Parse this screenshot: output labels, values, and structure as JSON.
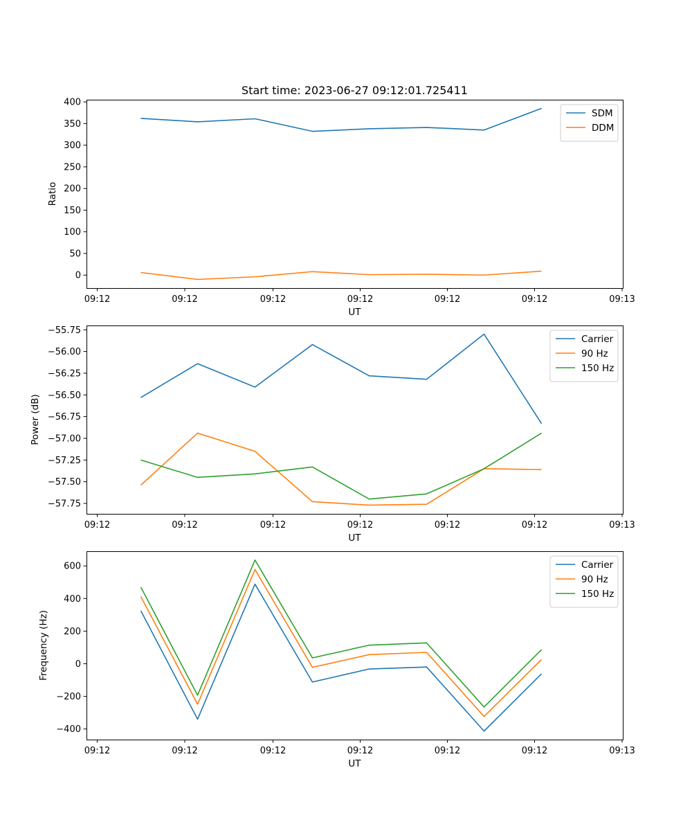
{
  "figure_title": "Start time: 2023-06-27 09:12:01.725411",
  "chart_data": [
    {
      "type": "line",
      "xlabel": "UT",
      "ylabel": "Ratio",
      "x_tick_labels": [
        "09:12",
        "09:12",
        "09:12",
        "09:12",
        "09:12",
        "09:12",
        "09:13"
      ],
      "ylim": [
        -30,
        405
      ],
      "y_ticks": [
        0,
        50,
        100,
        150,
        200,
        250,
        300,
        350,
        400
      ],
      "y_tick_labels": [
        "0",
        "50",
        "100",
        "150",
        "200",
        "250",
        "300",
        "350",
        "400"
      ],
      "legend_position": "top-right",
      "series": [
        {
          "name": "SDM",
          "color": "#1f77b4",
          "values": [
            362,
            354,
            361,
            332,
            338,
            341,
            335,
            385
          ]
        },
        {
          "name": "DDM",
          "color": "#ff7f0e",
          "values": [
            6,
            -10,
            -4,
            8,
            1,
            2,
            0,
            9
          ]
        }
      ]
    },
    {
      "type": "line",
      "xlabel": "UT",
      "ylabel": "Power (dB)",
      "x_tick_labels": [
        "09:12",
        "09:12",
        "09:12",
        "09:12",
        "09:12",
        "09:12",
        "09:13"
      ],
      "ylim": [
        -57.87,
        -55.7
      ],
      "y_ticks": [
        -57.75,
        -57.5,
        -57.25,
        -57.0,
        -56.75,
        -56.5,
        -56.25,
        -56.0,
        -55.75
      ],
      "y_tick_labels": [
        "−57.75",
        "−57.50",
        "−57.25",
        "−57.00",
        "−56.75",
        "−56.50",
        "−56.25",
        "−56.00",
        "−55.75"
      ],
      "legend_position": "top-right",
      "series": [
        {
          "name": "Carrier",
          "color": "#1f77b4",
          "values": [
            -56.53,
            -56.14,
            -56.41,
            -55.92,
            -56.28,
            -56.32,
            -55.8,
            -56.83
          ]
        },
        {
          "name": "90 Hz",
          "color": "#ff7f0e",
          "values": [
            -57.54,
            -56.94,
            -57.15,
            -57.73,
            -57.77,
            -57.76,
            -57.35,
            -57.36
          ]
        },
        {
          "name": "150 Hz",
          "color": "#2ca02c",
          "values": [
            -57.25,
            -57.45,
            -57.41,
            -57.33,
            -57.7,
            -57.64,
            -57.35,
            -56.94
          ]
        }
      ]
    },
    {
      "type": "line",
      "xlabel": "UT",
      "ylabel": "Frequency (Hz)",
      "x_tick_labels": [
        "09:12",
        "09:12",
        "09:12",
        "09:12",
        "09:12",
        "09:12",
        "09:13"
      ],
      "ylim": [
        -465,
        690
      ],
      "y_ticks": [
        -400,
        -200,
        0,
        200,
        400,
        600
      ],
      "y_tick_labels": [
        "−400",
        "−200",
        "0",
        "200",
        "400",
        "600"
      ],
      "legend_position": "top-right",
      "series": [
        {
          "name": "Carrier",
          "color": "#1f77b4",
          "values": [
            325,
            -340,
            488,
            -112,
            -32,
            -20,
            -413,
            -62
          ]
        },
        {
          "name": "90 Hz",
          "color": "#ff7f0e",
          "values": [
            412,
            -248,
            578,
            -22,
            56,
            70,
            -323,
            26
          ]
        },
        {
          "name": "150 Hz",
          "color": "#2ca02c",
          "values": [
            470,
            -193,
            636,
            36,
            114,
            128,
            -265,
            86
          ]
        }
      ]
    }
  ]
}
